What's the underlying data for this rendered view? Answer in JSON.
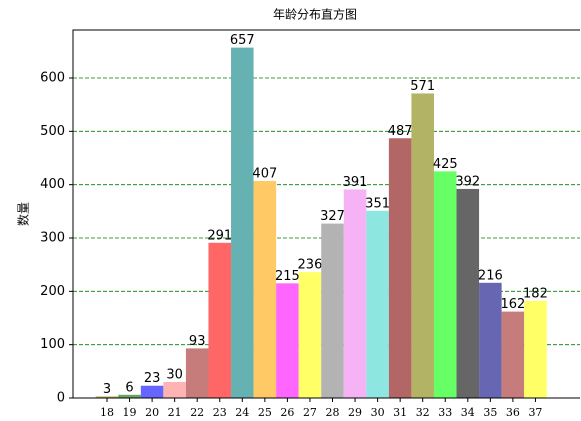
{
  "chart_data": {
    "type": "bar",
    "title": "年龄分布直方图",
    "y_label": "数量",
    "categories": [
      "18",
      "19",
      "20",
      "21",
      "22",
      "23",
      "24",
      "25",
      "26",
      "27",
      "28",
      "29",
      "30",
      "31",
      "32",
      "33",
      "34",
      "35",
      "36",
      "37"
    ],
    "values": [
      3,
      6,
      23,
      30,
      93,
      291,
      657,
      407,
      215,
      236,
      327,
      391,
      351,
      487,
      571,
      425,
      392,
      216,
      162,
      182
    ],
    "colors": [
      "#b3b366",
      "#66a366",
      "#6666ff",
      "#ffb3b3",
      "#c77c7c",
      "#ff6666",
      "#66b2b2",
      "#ffc966",
      "#ff66ff",
      "#ffff66",
      "#b3b3b3",
      "#f5b3f5",
      "#8ee6e0",
      "#b36666",
      "#b3b366",
      "#66ff66",
      "#666666",
      "#6666b3",
      "#c77c7c",
      "#ffff66"
    ],
    "ylim": [
      0,
      690
    ],
    "yticks": [
      0,
      100,
      200,
      300,
      400,
      500,
      600
    ],
    "grid": true,
    "grid_color": "#008000"
  }
}
